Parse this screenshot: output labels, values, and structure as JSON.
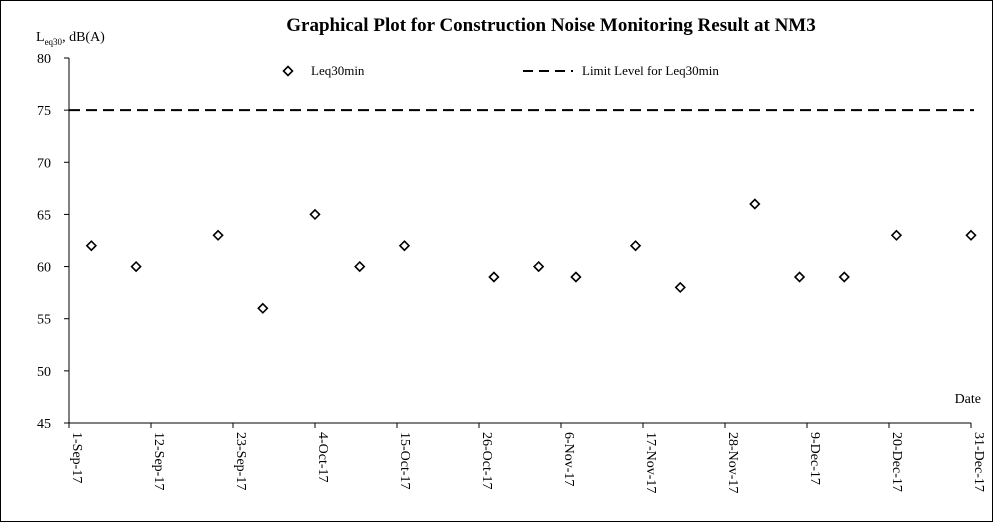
{
  "chart_data": {
    "type": "scatter",
    "title": "Graphical Plot for Construction Noise Monitoring Result at NM3",
    "ylabel": {
      "main": "L",
      "sub": "eq30",
      "rest": ", dB(A)"
    },
    "xlabel": "Date",
    "ylim": [
      45,
      80
    ],
    "yticks": [
      45,
      50,
      55,
      60,
      65,
      70,
      75,
      80
    ],
    "xlim": [
      "2017-09-01",
      "2017-12-31"
    ],
    "xtick_labels": [
      "1-Sep-17",
      "12-Sep-17",
      "23-Sep-17",
      "4-Oct-17",
      "15-Oct-17",
      "26-Oct-17",
      "6-Nov-17",
      "17-Nov-17",
      "28-Nov-17",
      "9-Dec-17",
      "20-Dec-17",
      "31-Dec-17"
    ],
    "grid": false,
    "legend_position": "top",
    "series": [
      {
        "name": "Leq30min",
        "marker": "diamond",
        "color": "#000000",
        "points": [
          {
            "x": "2017-09-04",
            "y": 62
          },
          {
            "x": "2017-09-10",
            "y": 60
          },
          {
            "x": "2017-09-21",
            "y": 63
          },
          {
            "x": "2017-09-27",
            "y": 56
          },
          {
            "x": "2017-10-04",
            "y": 65
          },
          {
            "x": "2017-10-10",
            "y": 60
          },
          {
            "x": "2017-10-16",
            "y": 62
          },
          {
            "x": "2017-10-28",
            "y": 59
          },
          {
            "x": "2017-11-03",
            "y": 60
          },
          {
            "x": "2017-11-08",
            "y": 59
          },
          {
            "x": "2017-11-16",
            "y": 62
          },
          {
            "x": "2017-11-22",
            "y": 58
          },
          {
            "x": "2017-12-02",
            "y": 66
          },
          {
            "x": "2017-12-08",
            "y": 59
          },
          {
            "x": "2017-12-14",
            "y": 59
          },
          {
            "x": "2017-12-21",
            "y": 63
          },
          {
            "x": "2017-12-31",
            "y": 63
          }
        ]
      },
      {
        "name": "Limit Level for Leq30min",
        "style": "dashed-line",
        "color": "#000000",
        "y": 75
      }
    ]
  }
}
